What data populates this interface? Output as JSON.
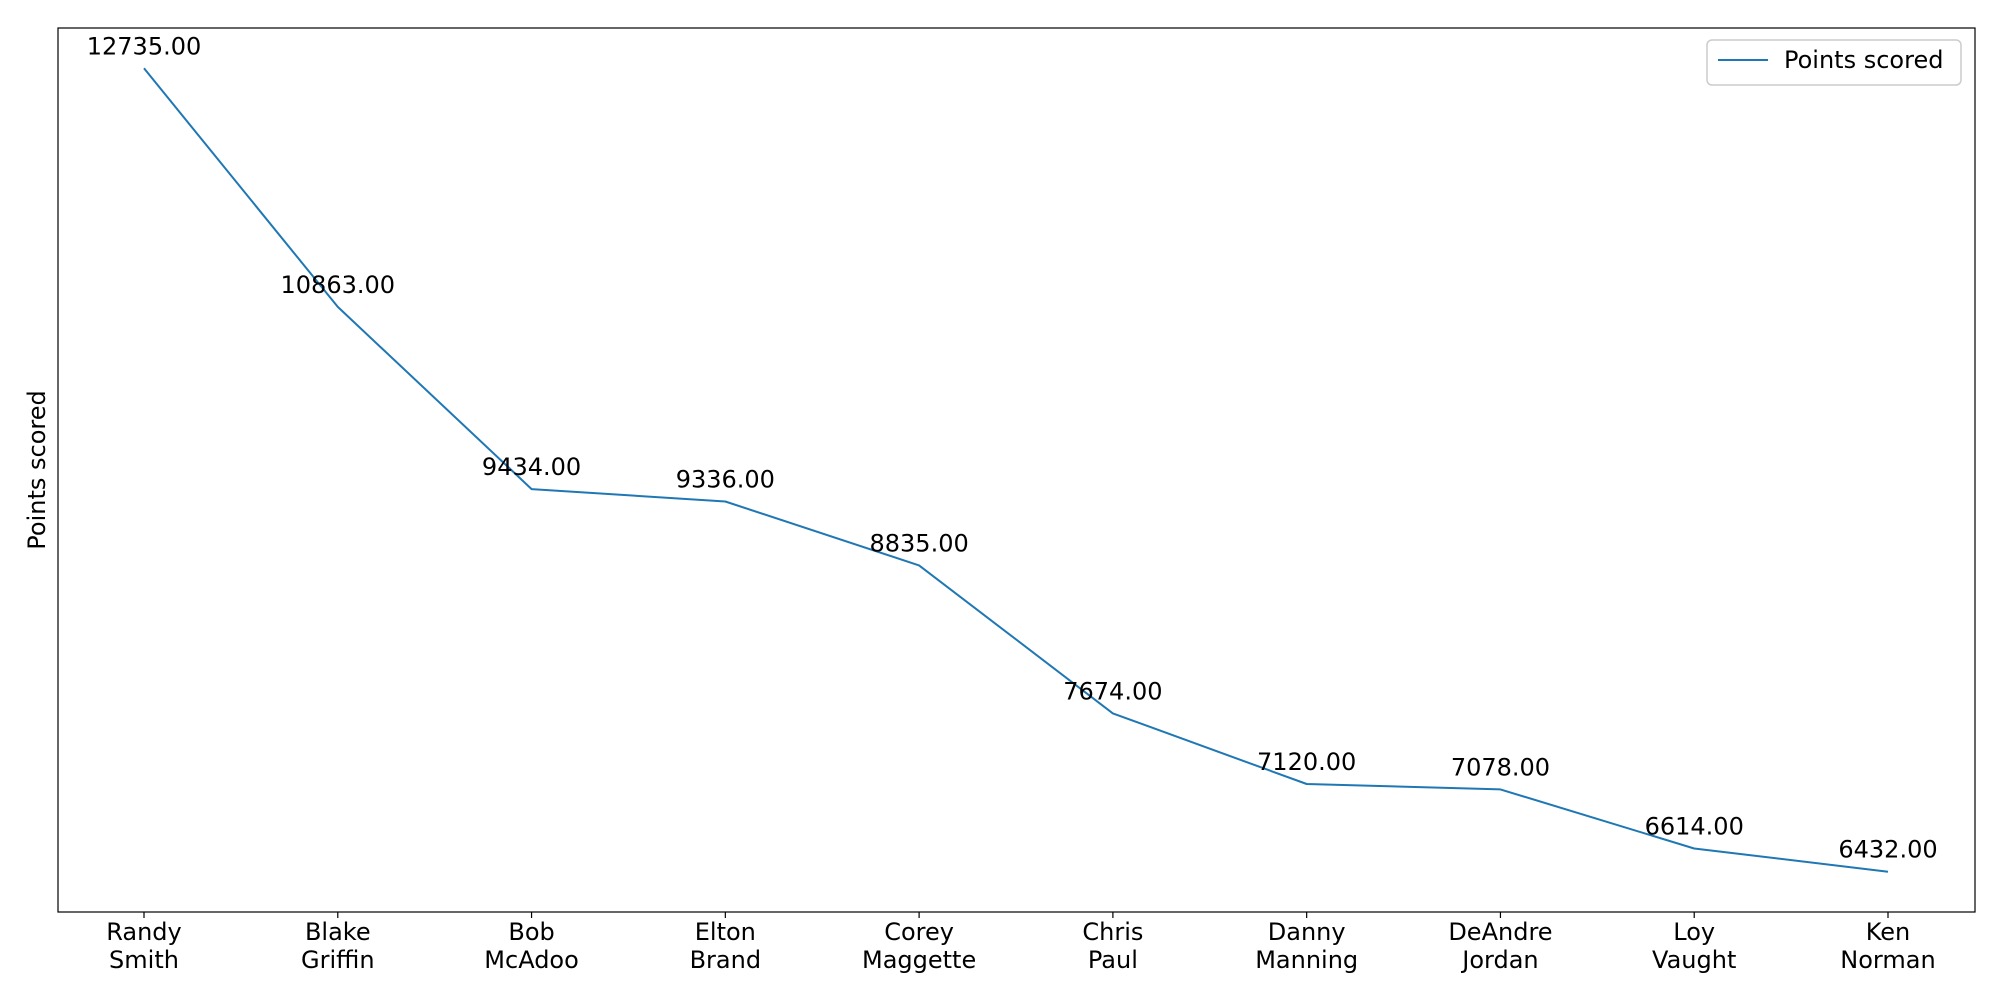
{
  "chart_data": {
    "type": "line",
    "categories": [
      [
        "Randy",
        "Smith"
      ],
      [
        "Blake",
        "Griffin"
      ],
      [
        "Bob",
        "McAdoo"
      ],
      [
        "Elton",
        "Brand"
      ],
      [
        "Corey",
        "Maggette"
      ],
      [
        "Chris",
        "Paul"
      ],
      [
        "Danny",
        "Manning"
      ],
      [
        "DeAndre",
        "Jordan"
      ],
      [
        "Loy",
        "Vaught"
      ],
      [
        "Ken",
        "Norman"
      ]
    ],
    "series": [
      {
        "name": "Points scored",
        "values": [
          12735,
          10863,
          9434,
          9336,
          8835,
          7674,
          7120,
          7078,
          6614,
          6432
        ],
        "color": "#1f77b4"
      }
    ],
    "data_labels": [
      "12735.00",
      "10863.00",
      "9434.00",
      "9336.00",
      "8835.00",
      "7674.00",
      "7120.00",
      "7078.00",
      "6614.00",
      "6432.00"
    ],
    "title": "",
    "xlabel": "",
    "ylabel": "Points scored",
    "ylim": [
      6115.85,
      13051.15
    ],
    "grid": false,
    "legend_position": "top-right",
    "y_tick_labels_shown": false
  }
}
